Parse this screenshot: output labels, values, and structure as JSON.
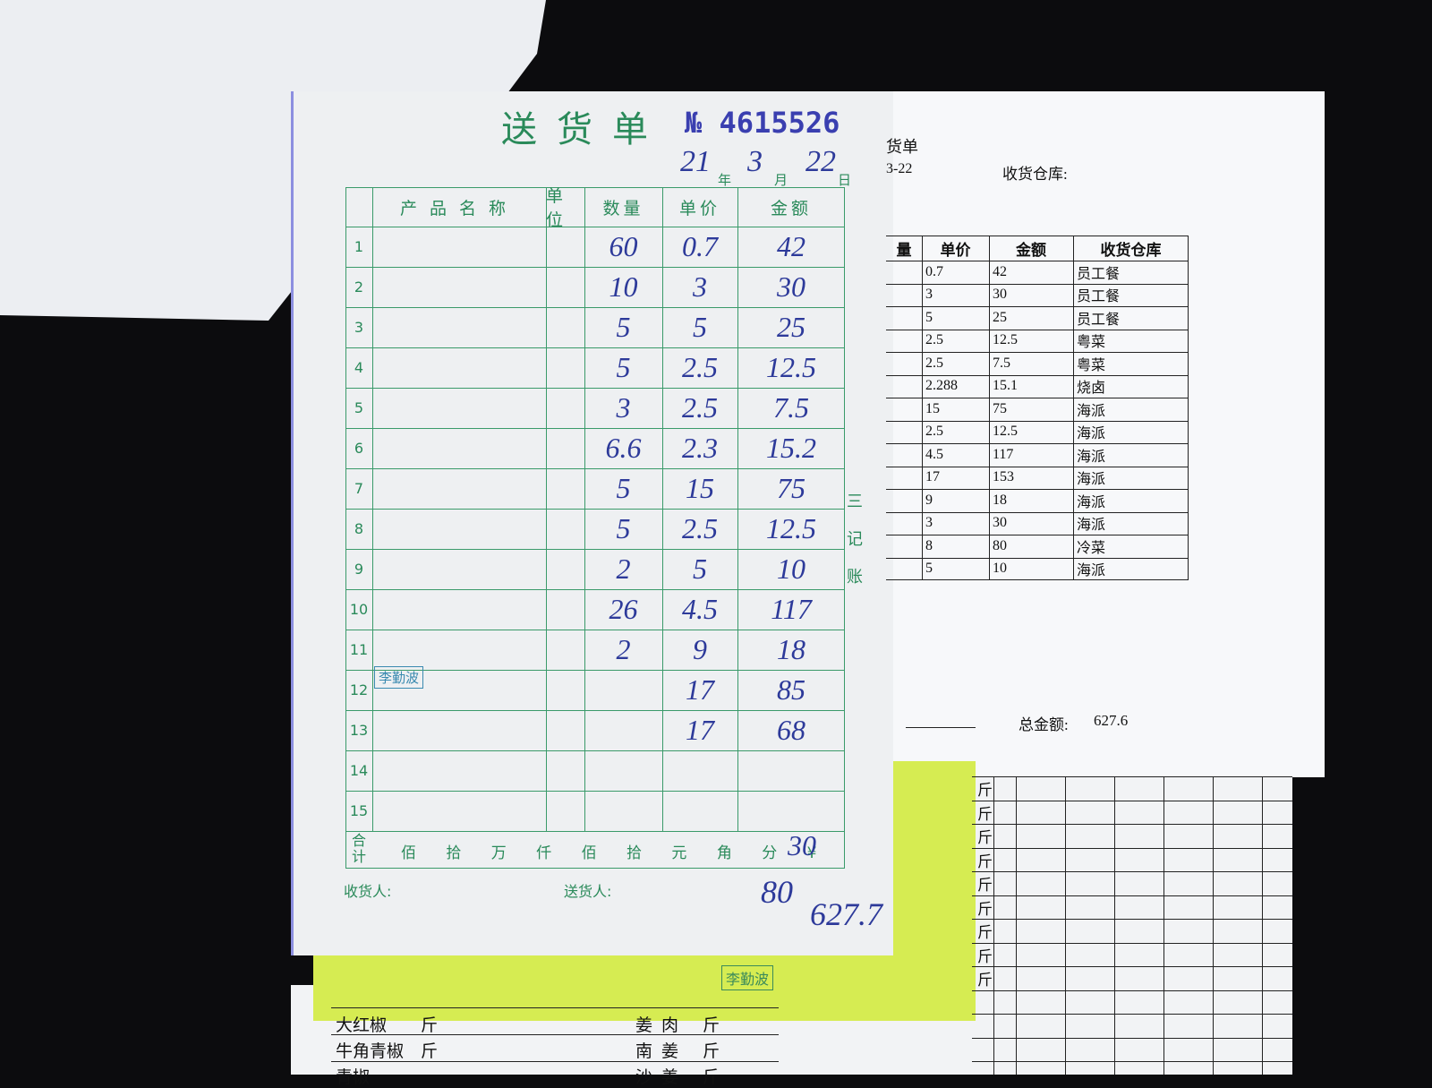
{
  "receipt": {
    "title": "送货单",
    "number": "№ 4615526",
    "date": [
      "21",
      "年",
      "3",
      "月",
      "22",
      "日"
    ],
    "headers": [
      "产品名称",
      "单位",
      "数量",
      "单价",
      "金额"
    ],
    "row_numbers": [
      "1",
      "2",
      "3",
      "4",
      "5",
      "6",
      "7",
      "8",
      "9",
      "10",
      "11",
      "12",
      "13",
      "14",
      "15"
    ],
    "quantities": [
      "60",
      "10",
      "5",
      "5",
      "3",
      "6.6",
      "5",
      "5",
      "2",
      "26",
      "2",
      "",
      "",
      "",
      ""
    ],
    "prices": [
      "0.7",
      "3",
      "5",
      "2.5",
      "2.5",
      "2.3",
      "15",
      "2.5",
      "5",
      "4.5",
      "9",
      "17",
      "17",
      "",
      ""
    ],
    "amounts": [
      "42",
      "30",
      "25",
      "12.5",
      "7.5",
      "15.2",
      "75",
      "12.5",
      "10",
      "117",
      "18",
      "85",
      "68",
      "",
      ""
    ],
    "total_label": "合计",
    "total_units": "佰 拾 万 仟 佰 拾 元 角 分 ¥",
    "total_value": "30",
    "receiver": "收货人:",
    "sender": "送货人:",
    "note_a": "80",
    "note_b": "627.7",
    "side": "三 记 账",
    "stamp": "李勤波"
  },
  "sheet": {
    "title": "货单",
    "date": "3-22",
    "warehouse_label": "收货仓库:",
    "headers": [
      "量",
      "单价",
      "金额",
      "收货仓库"
    ],
    "rows": [
      [
        "0.7",
        "42",
        "员工餐"
      ],
      [
        "3",
        "30",
        "员工餐"
      ],
      [
        "5",
        "25",
        "员工餐"
      ],
      [
        "2.5",
        "12.5",
        "粤菜"
      ],
      [
        "2.5",
        "7.5",
        "粤菜"
      ],
      [
        "2.288",
        "15.1",
        "烧卤"
      ],
      [
        "15",
        "75",
        "海派"
      ],
      [
        "2.5",
        "12.5",
        "海派"
      ],
      [
        "4.5",
        "117",
        "海派"
      ],
      [
        "17",
        "153",
        "海派"
      ],
      [
        "9",
        "18",
        "海派"
      ],
      [
        "3",
        "30",
        "海派"
      ],
      [
        "8",
        "80",
        "冷菜"
      ],
      [
        "5",
        "10",
        "海派"
      ]
    ],
    "total_label": "总金额:",
    "total_value": "627.6"
  },
  "bottom": {
    "left_items": [
      [
        "大红椒",
        "斤"
      ],
      [
        "牛角青椒",
        "斤"
      ],
      [
        "青椒",
        ""
      ]
    ],
    "mid_items": [
      [
        "姜肉",
        "斤"
      ],
      [
        "南姜",
        "斤"
      ],
      [
        "沙姜",
        "斤"
      ]
    ],
    "unit": "斤",
    "stamp": "李勤波"
  }
}
